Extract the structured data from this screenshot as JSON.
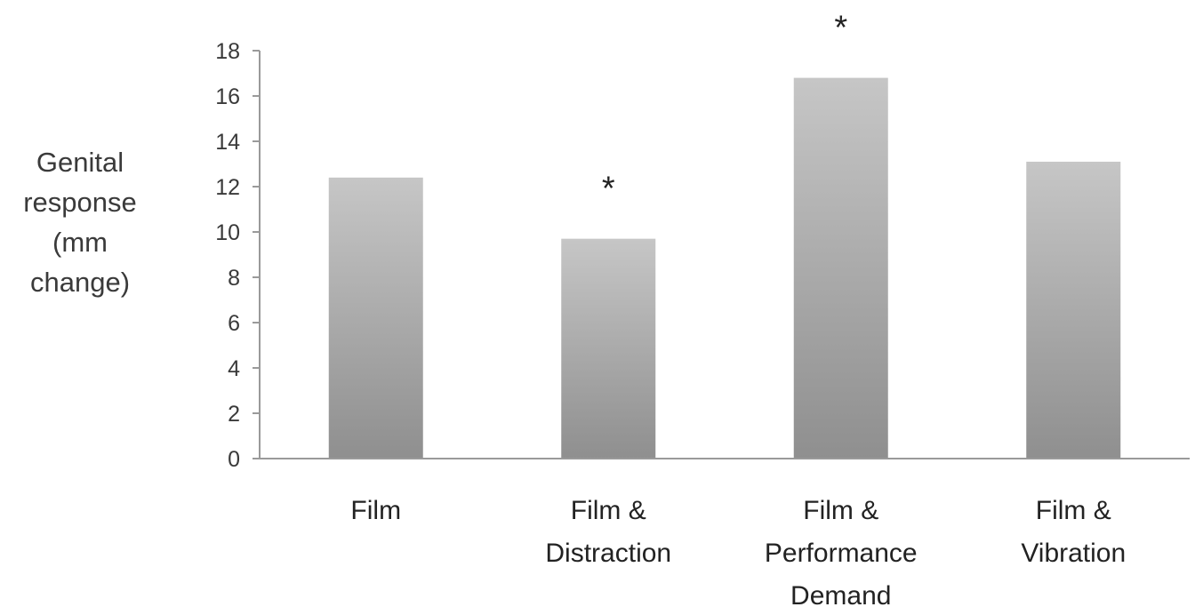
{
  "chart_data": {
    "type": "bar",
    "title": "",
    "ylabel_lines": [
      "Genital",
      "response",
      "(mm",
      "change)"
    ],
    "xlabel": "",
    "categories": [
      [
        "Film"
      ],
      [
        "Film &",
        "Distraction"
      ],
      [
        "Film &",
        "Performance",
        "Demand"
      ],
      [
        "Film &",
        "Vibration"
      ]
    ],
    "values": [
      12.4,
      9.7,
      16.8,
      13.1
    ],
    "annotations": [
      "",
      "*",
      "*",
      ""
    ],
    "ylim": [
      0,
      18
    ],
    "yticks": [
      0,
      2,
      4,
      6,
      8,
      10,
      12,
      14,
      16,
      18
    ],
    "grid": false,
    "legend": "none",
    "bar_color_top": "#c6c6c6",
    "bar_color_bottom": "#8f8f8f",
    "axis_color": "#9a9a9a"
  }
}
